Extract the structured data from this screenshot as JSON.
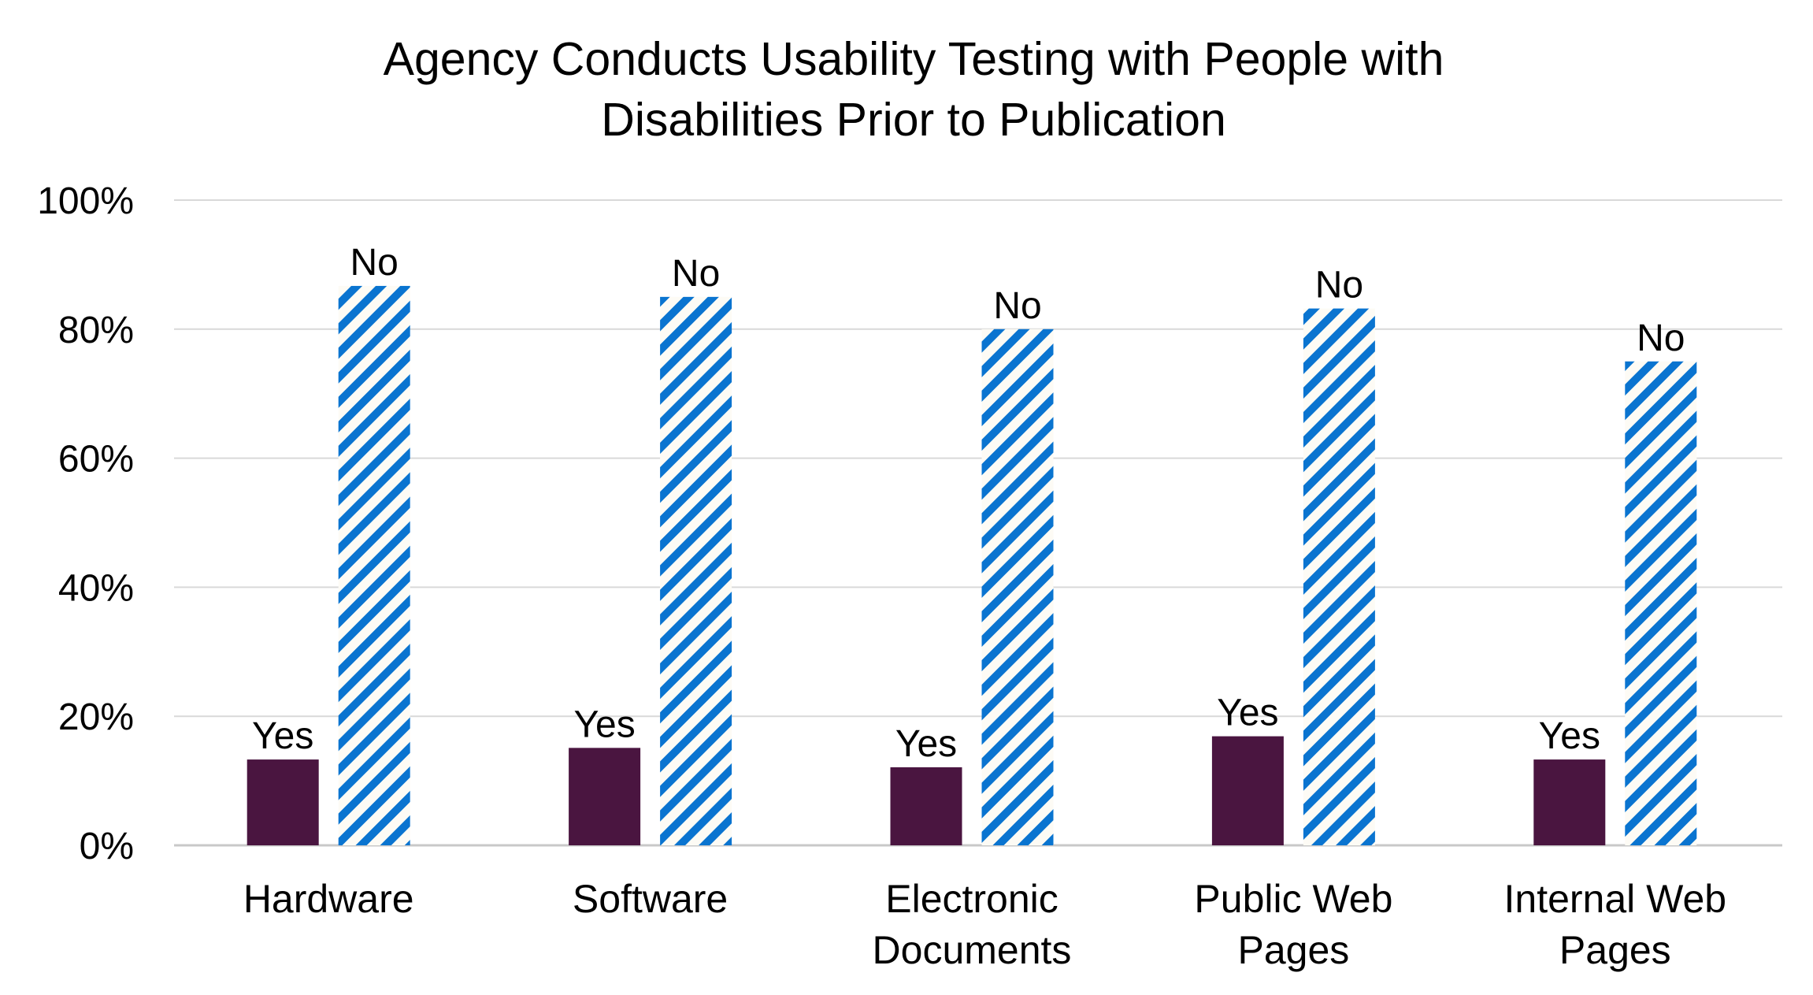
{
  "chart_data": {
    "type": "bar",
    "title": [
      "Agency Conducts Usability Testing with People with",
      "Disabilities Prior to Publication"
    ],
    "xlabel": "",
    "ylabel": "",
    "ylim": [
      0,
      100
    ],
    "yticks": [
      "0%",
      "20%",
      "40%",
      "60%",
      "80%",
      "100%"
    ],
    "grid": true,
    "legend": "none",
    "categories": [
      [
        "Hardware"
      ],
      [
        "Software"
      ],
      [
        "Electronic",
        "Documents"
      ],
      [
        "Public Web",
        "Pages"
      ],
      [
        "Internal Web",
        "Pages"
      ]
    ],
    "series": [
      {
        "name": "Yes",
        "values": [
          13.3,
          15.1,
          12.1,
          16.9,
          13.3
        ],
        "color": "#4a1540",
        "pattern": "solid"
      },
      {
        "name": "No",
        "values": [
          86.7,
          85.0,
          80.0,
          83.2,
          75.0
        ],
        "color": "#0a74d0",
        "pattern": "diagonal-stripes"
      }
    ],
    "data_labels": "series name above each bar"
  }
}
